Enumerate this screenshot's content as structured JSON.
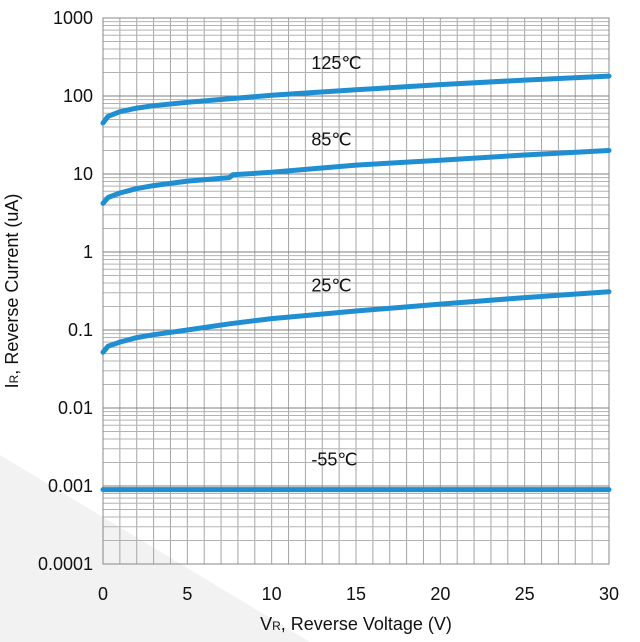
{
  "chart_data": {
    "type": "line",
    "y_scale": "log",
    "grid": true,
    "title": "",
    "xlabel": {
      "prefix": "V",
      "subscript": "R",
      "suffix": ", Reverse Voltage (V)"
    },
    "ylabel": {
      "prefix": "I",
      "subscript": "R",
      "suffix": ", Reverse Current (uA)"
    },
    "xlim": [
      0,
      30
    ],
    "ylim": [
      0.0001,
      1000
    ],
    "x_ticks": [
      "0",
      "5",
      "10",
      "15",
      "20",
      "25",
      "30"
    ],
    "y_ticks": [
      "0.0001",
      "0.001",
      "0.01",
      "0.1",
      "1",
      "10",
      "100",
      "1000"
    ],
    "series_color": "#1f8fd2",
    "series": [
      {
        "name": "125℃",
        "x": [
          0,
          0.3,
          1,
          2,
          3,
          5,
          7.5,
          10,
          15,
          20,
          25,
          30
        ],
        "y": [
          45,
          55,
          63,
          70,
          75,
          83,
          92,
          102,
          120,
          140,
          160,
          180
        ]
      },
      {
        "name": "85℃",
        "x": [
          0,
          0.3,
          1,
          2,
          3,
          5,
          7.5,
          7.7,
          10,
          15,
          20,
          25,
          30
        ],
        "y": [
          4.2,
          5.0,
          5.7,
          6.5,
          7.1,
          8.1,
          9.0,
          9.8,
          10.5,
          13,
          15,
          17.5,
          20
        ]
      },
      {
        "name": "25℃",
        "x": [
          0,
          0.3,
          1,
          2,
          3,
          5,
          7.5,
          10,
          15,
          20,
          25,
          30
        ],
        "y": [
          0.052,
          0.062,
          0.07,
          0.08,
          0.087,
          0.1,
          0.12,
          0.14,
          0.175,
          0.215,
          0.26,
          0.31
        ]
      },
      {
        "name": "-55℃",
        "x": [
          0,
          30
        ],
        "y": [
          0.0009,
          0.0009
        ]
      }
    ]
  }
}
